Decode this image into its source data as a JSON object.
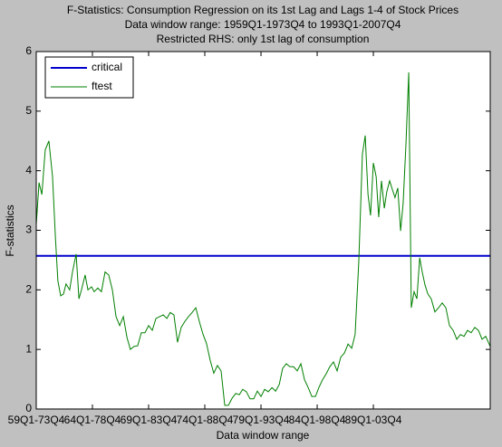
{
  "chart_data": {
    "type": "line",
    "title": "F-Statistics: Consumption Regression on its 1st Lag and Lags 1-4 of Stock Prices",
    "subtitle": [
      "Data window range: 1959Q1-1973Q4 to 1993Q1-2007Q4",
      "Restricted RHS: only 1st lag of consumption"
    ],
    "xlabel": "Data window range",
    "ylabel": "F-statistics",
    "xlim": [
      0,
      161.6
    ],
    "ylim": [
      0,
      6
    ],
    "xticks": [
      {
        "value": 0,
        "label": "59Q1-73Q4"
      },
      {
        "value": 20,
        "label": "64Q1-78Q4"
      },
      {
        "value": 40,
        "label": "69Q1-83Q4"
      },
      {
        "value": 60,
        "label": "74Q1-88Q4"
      },
      {
        "value": 80,
        "label": "79Q1-93Q4"
      },
      {
        "value": 100,
        "label": "84Q1-98Q4"
      },
      {
        "value": 120,
        "label": "89Q1-03Q4"
      }
    ],
    "yticks": [
      0,
      1,
      2,
      3,
      4,
      5,
      6
    ],
    "grid": false,
    "legend": "northwest",
    "series": [
      {
        "name": "critical",
        "color": "#0000cc",
        "x": [
          0,
          161.6
        ],
        "values": [
          2.57,
          2.57
        ]
      },
      {
        "name": "ftest",
        "color": "#007f00",
        "x": [
          0,
          1,
          2,
          3.2,
          4.5,
          5.8,
          6.8,
          7.7,
          8.7,
          9.7,
          10.6,
          11.9,
          12.9,
          14.2,
          15.2,
          16.1,
          17.4,
          18.4,
          19.7,
          20.6,
          21.9,
          23.2,
          24.5,
          25.8,
          27.1,
          28.4,
          29.7,
          31,
          32.3,
          33.5,
          34.8,
          36.1,
          37.4,
          38.7,
          40,
          41.3,
          42.6,
          43.9,
          45.2,
          46.5,
          47.7,
          49,
          50.3,
          51.6,
          52.9,
          54.2,
          55.5,
          56.8,
          58.1,
          59.4,
          60.6,
          61.9,
          63.2,
          64.5,
          65.8,
          67.1,
          68.4,
          69.7,
          71,
          72.3,
          73.5,
          74.8,
          76.1,
          77.4,
          78.7,
          80,
          81.3,
          82.6,
          83.9,
          85.2,
          86.5,
          87.7,
          89,
          90.3,
          91.6,
          92.9,
          94.2,
          95.5,
          96.8,
          98.1,
          99.4,
          100.6,
          101.9,
          103.2,
          104.5,
          105.8,
          107.1,
          108.4,
          109.7,
          111,
          112.3,
          113.5,
          114.8,
          116.1,
          117.1,
          118.1,
          119,
          120,
          121,
          121.9,
          122.9,
          123.9,
          124.8,
          125.8,
          126.8,
          127.7,
          128.7,
          129.7,
          130.6,
          131.6,
          132.6,
          133.5,
          134.5,
          135.5,
          136.5,
          137.4,
          138.4,
          139.4,
          140.6,
          141.9,
          143.2,
          144.5,
          145.8,
          147.1,
          148.4,
          149.7,
          151,
          152.3,
          153.5,
          154.8,
          156.1,
          157.4,
          158.7,
          160,
          161.6
        ],
        "values": [
          3.1,
          3.8,
          3.6,
          4.35,
          4.5,
          3.9,
          2.9,
          2.15,
          1.9,
          1.93,
          2.1,
          2.0,
          2.3,
          2.6,
          1.85,
          2.0,
          2.25,
          2.0,
          2.05,
          1.97,
          2.03,
          1.97,
          2.3,
          2.25,
          2.0,
          1.55,
          1.4,
          1.55,
          1.2,
          1.0,
          1.05,
          1.06,
          1.28,
          1.28,
          1.4,
          1.32,
          1.52,
          1.55,
          1.58,
          1.52,
          1.62,
          1.58,
          1.12,
          1.37,
          1.47,
          1.55,
          1.62,
          1.7,
          1.46,
          1.25,
          1.1,
          0.82,
          0.6,
          0.73,
          0.64,
          0.06,
          0.06,
          0.18,
          0.26,
          0.24,
          0.33,
          0.29,
          0.17,
          0.17,
          0.3,
          0.21,
          0.33,
          0.29,
          0.36,
          0.3,
          0.41,
          0.68,
          0.76,
          0.71,
          0.71,
          0.64,
          0.76,
          0.49,
          0.36,
          0.21,
          0.21,
          0.36,
          0.49,
          0.59,
          0.71,
          0.79,
          0.64,
          0.87,
          0.94,
          1.09,
          1.02,
          1.25,
          2.46,
          4.28,
          4.59,
          3.6,
          3.25,
          4.13,
          3.9,
          3.22,
          3.83,
          3.37,
          3.65,
          3.83,
          3.68,
          3.55,
          3.71,
          2.99,
          3.45,
          4.44,
          5.65,
          1.7,
          1.97,
          1.85,
          2.54,
          2.3,
          2.08,
          1.93,
          1.85,
          1.63,
          1.7,
          1.78,
          1.7,
          1.4,
          1.32,
          1.17,
          1.25,
          1.22,
          1.32,
          1.28,
          1.37,
          1.32,
          1.17,
          1.22,
          1.05
        ]
      }
    ]
  }
}
